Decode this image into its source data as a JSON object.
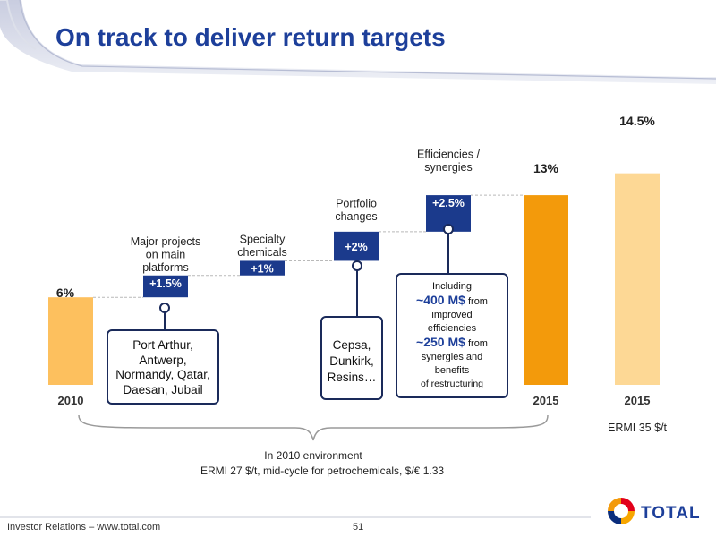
{
  "title": "On track to deliver return targets",
  "chart_data": {
    "type": "bar",
    "categories": [
      "2010",
      "2015",
      "2015"
    ],
    "values": [
      6,
      13,
      14.5
    ],
    "value_labels": [
      "6%",
      "13%",
      "14.5%"
    ],
    "bar_colors": [
      "#fdc05e",
      "#f39a0b",
      "#fdd895"
    ],
    "steps": [
      {
        "label": "Major projects on main platforms",
        "value": 1.5,
        "value_label": "+1.5%"
      },
      {
        "label": "Specialty chemicals",
        "value": 1,
        "value_label": "+1%"
      },
      {
        "label": "Portfolio changes",
        "value": 2,
        "value_label": "+2%"
      },
      {
        "label": "Efficiencies / synergies",
        "value": 2.5,
        "value_label": "+2.5%"
      }
    ],
    "step_color": "#1b3a8c",
    "environment_note_2010": "In 2010 environment",
    "environment_detail_2010": "ERMI 27 $/t, mid-cycle for petrochemicals, $/€ 1.33",
    "environment_note_2015": "ERMI 35 $/t"
  },
  "callouts": {
    "major_projects": [
      "Port Arthur,",
      "Antwerp,",
      "Normandy, Qatar,",
      "Daesan, Jubail"
    ],
    "portfolio": [
      "Cepsa,",
      "Dunkirk,",
      "Resins…"
    ],
    "efficiencies": {
      "intro": "Including",
      "efficiency_amount": "~400 M$",
      "efficiency_from": "from",
      "efficiency_rest": [
        "improved",
        "efficiencies"
      ],
      "synergy_amount": "~250 M$",
      "synergy_from": "from",
      "synergy_rest": [
        "synergies and",
        "benefits",
        "of restructuring"
      ]
    }
  },
  "footer": {
    "left": "Investor Relations – www.total.com",
    "page": "51"
  },
  "logo": {
    "text": "TOTAL"
  }
}
